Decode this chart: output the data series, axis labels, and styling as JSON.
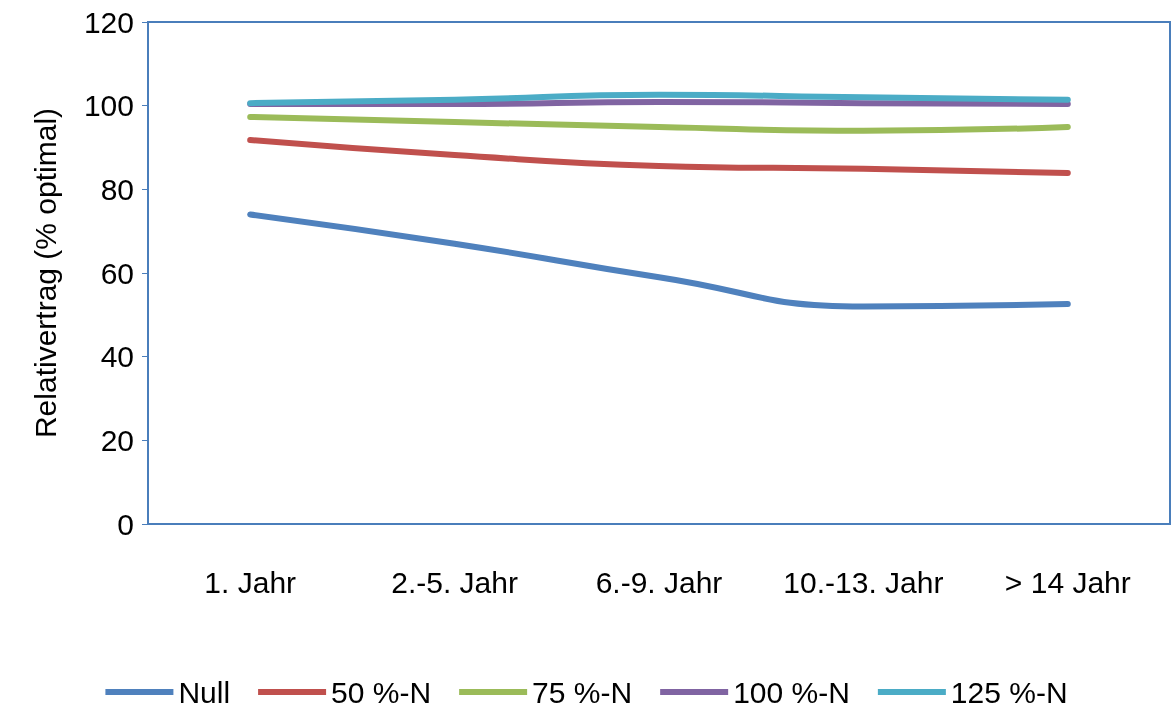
{
  "chart_data": {
    "type": "line",
    "ylabel": "Relativertrag (% optimal)",
    "categories": [
      "1. Jahr",
      "2.-5. Jahr",
      "6.-9. Jahr",
      "10.-13. Jahr",
      "> 14 Jahr"
    ],
    "series": [
      {
        "name": "Null",
        "color": "#4f81bd",
        "values": [
          74,
          67,
          59,
          52,
          52.6
        ]
      },
      {
        "name": "50 %-N",
        "color": "#c0504d",
        "values": [
          91.8,
          88.2,
          85.6,
          84.9,
          83.9
        ]
      },
      {
        "name": "75 %-N",
        "color": "#9bbb59",
        "values": [
          97.3,
          96.1,
          94.9,
          94,
          94.9
        ]
      },
      {
        "name": "100 %-N",
        "color": "#8064a2",
        "values": [
          100.4,
          100.4,
          100.9,
          100.6,
          100.4
        ]
      },
      {
        "name": "125 %-N",
        "color": "#4bacc6",
        "values": [
          100.6,
          101.4,
          102.6,
          102,
          101.4
        ]
      }
    ],
    "ylim": [
      0,
      120
    ],
    "yticks": [
      0,
      20,
      40,
      60,
      80,
      100,
      120
    ],
    "grid": false,
    "legend": "bottom",
    "marker": "none",
    "line_style": "solid"
  }
}
